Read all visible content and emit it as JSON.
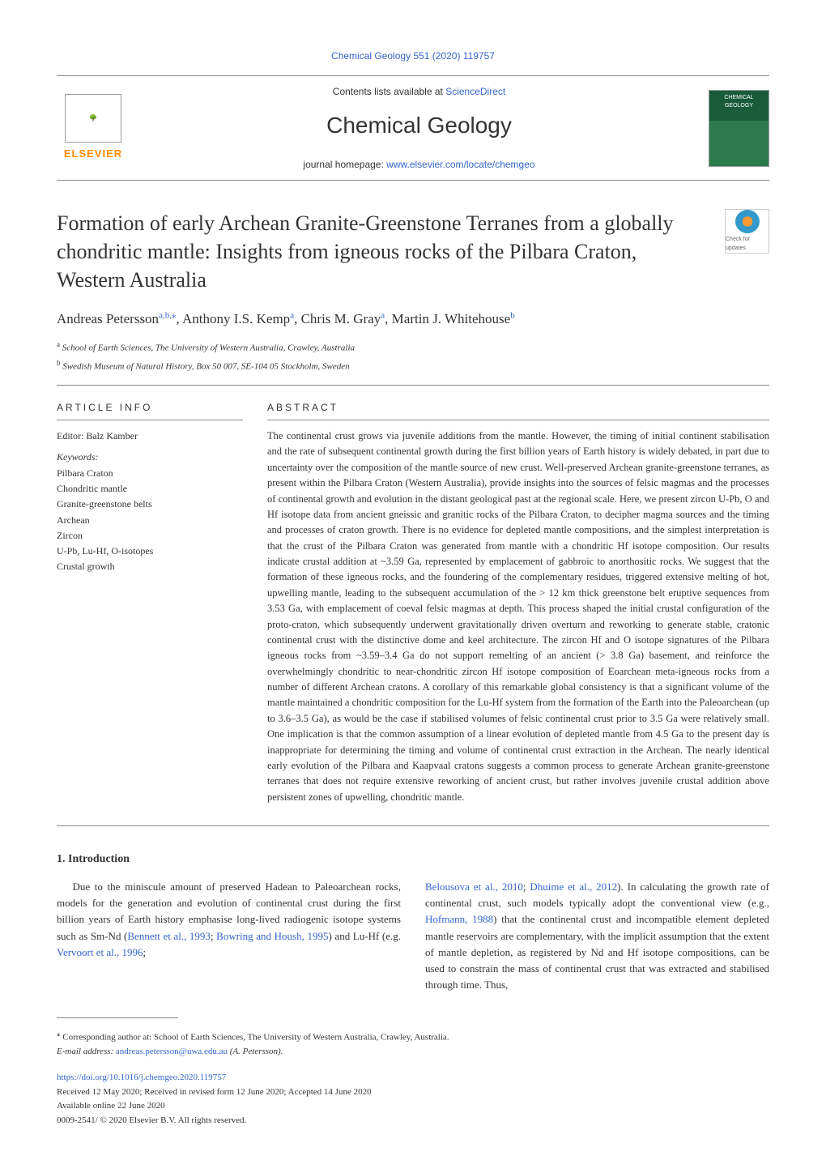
{
  "citation": "Chemical Geology 551 (2020) 119757",
  "header": {
    "contents_prefix": "Contents lists available at ",
    "contents_link": "ScienceDirect",
    "journal_name": "Chemical Geology",
    "homepage_prefix": "journal homepage: ",
    "homepage_link": "www.elsevier.com/locate/chemgeo",
    "elsevier": "ELSEVIER",
    "cover_text": "CHEMICAL GEOLOGY"
  },
  "check_updates": "Check for updates",
  "title": "Formation of early Archean Granite-Greenstone Terranes from a globally chondritic mantle: Insights from igneous rocks of the Pilbara Craton, Western Australia",
  "authors": {
    "a1": "Andreas Petersson",
    "a1_sup": "a,b,",
    "a1_star": "⁎",
    "sep1": ", ",
    "a2": "Anthony I.S. Kemp",
    "a2_sup": "a",
    "sep2": ", ",
    "a3": "Chris M. Gray",
    "a3_sup": "a",
    "sep3": ", ",
    "a4": "Martin J. Whitehouse",
    "a4_sup": "b"
  },
  "affiliations": {
    "a": "School of Earth Sciences, The University of Western Australia, Crawley, Australia",
    "b": "Swedish Museum of Natural History, Box 50 007, SE-104 05 Stockholm, Sweden"
  },
  "article_info": {
    "heading": "ARTICLE INFO",
    "editor_label": "Editor: ",
    "editor": "Balz Kamber",
    "keywords_label": "Keywords:",
    "keywords": [
      "Pilbara Craton",
      "Chondritic mantle",
      "Granite-greenstone belts",
      "Archean",
      "Zircon",
      "U-Pb, Lu-Hf, O-isotopes",
      "Crustal growth"
    ]
  },
  "abstract": {
    "heading": "ABSTRACT",
    "text": "The continental crust grows via juvenile additions from the mantle. However, the timing of initial continent stabilisation and the rate of subsequent continental growth during the first billion years of Earth history is widely debated, in part due to uncertainty over the composition of the mantle source of new crust. Well-preserved Archean granite-greenstone terranes, as present within the Pilbara Craton (Western Australia), provide insights into the sources of felsic magmas and the processes of continental growth and evolution in the distant geological past at the regional scale. Here, we present zircon U-Pb, O and Hf isotope data from ancient gneissic and granitic rocks of the Pilbara Craton, to decipher magma sources and the timing and processes of craton growth. There is no evidence for depleted mantle compositions, and the simplest interpretation is that the crust of the Pilbara Craton was generated from mantle with a chondritic Hf isotope composition. Our results indicate crustal addition at ~3.59 Ga, represented by emplacement of gabbroic to anorthositic rocks. We suggest that the formation of these igneous rocks, and the foundering of the complementary residues, triggered extensive melting of hot, upwelling mantle, leading to the subsequent accumulation of the > 12 km thick greenstone belt eruptive sequences from 3.53 Ga, with emplacement of coeval felsic magmas at depth. This process shaped the initial crustal configuration of the proto-craton, which subsequently underwent gravitationally driven overturn and reworking to generate stable, cratonic continental crust with the distinctive dome and keel architecture. The zircon Hf and O isotope signatures of the Pilbara igneous rocks from ~3.59–3.4 Ga do not support remelting of an ancient (> 3.8 Ga) basement, and reinforce the overwhelmingly chondritic to near-chondritic zircon Hf isotope composition of Eoarchean meta-igneous rocks from a number of different Archean cratons. A corollary of this remarkable global consistency is that a significant volume of the mantle maintained a chondritic composition for the Lu-Hf system from the formation of the Earth into the Paleoarchean (up to 3.6–3.5 Ga), as would be the case if stabilised volumes of felsic continental crust prior to 3.5 Ga were relatively small. One implication is that the common assumption of a linear evolution of depleted mantle from 4.5 Ga to the present day is inappropriate for determining the timing and volume of continental crust extraction in the Archean. The nearly identical early evolution of the Pilbara and Kaapvaal cratons suggests a common process to generate Archean granite-greenstone terranes that does not require extensive reworking of ancient crust, but rather involves juvenile crustal addition above persistent zones of upwelling, chondritic mantle."
  },
  "intro": {
    "heading": "1. Introduction",
    "col1_pre": "Due to the miniscule amount of preserved Hadean to Paleoarchean rocks, models for the generation and evolution of continental crust during the first billion years of Earth history emphasise long-lived radiogenic isotope systems such as Sm-Nd (",
    "col1_c1": "Bennett et al., 1993",
    "col1_mid1": "; ",
    "col1_c2": "Bowring and Housh, 1995",
    "col1_mid2": ") and Lu-Hf (e.g. ",
    "col1_c3": "Vervoort et al., 1996",
    "col1_post": "; ",
    "col2_c1": "Belousova et al., 2010",
    "col2_mid1": "; ",
    "col2_c2": "Dhuime et al., 2012",
    "col2_mid2": "). In calculating the growth rate of continental crust, such models typically adopt the conventional view (e.g., ",
    "col2_c3": "Hofmann, 1988",
    "col2_post": ") that the continental crust and incompatible element depleted mantle reservoirs are complementary, with the implicit assumption that the extent of mantle depletion, as registered by Nd and Hf isotope compositions, can be used to constrain the mass of continental crust that was extracted and stabilised through time. Thus,"
  },
  "footer": {
    "corr_text": "Corresponding author at: School of Earth Sciences, The University of Western Australia, Crawley, Australia.",
    "email_label": "E-mail address: ",
    "email": "andreas.petersson@uwa.edu.au",
    "email_suffix": " (A. Petersson).",
    "doi": "https://doi.org/10.1016/j.chemgeo.2020.119757",
    "received": "Received 12 May 2020; Received in revised form 12 June 2020; Accepted 14 June 2020",
    "online": "Available online 22 June 2020",
    "copyright": "0009-2541/ © 2020 Elsevier B.V. All rights reserved."
  }
}
